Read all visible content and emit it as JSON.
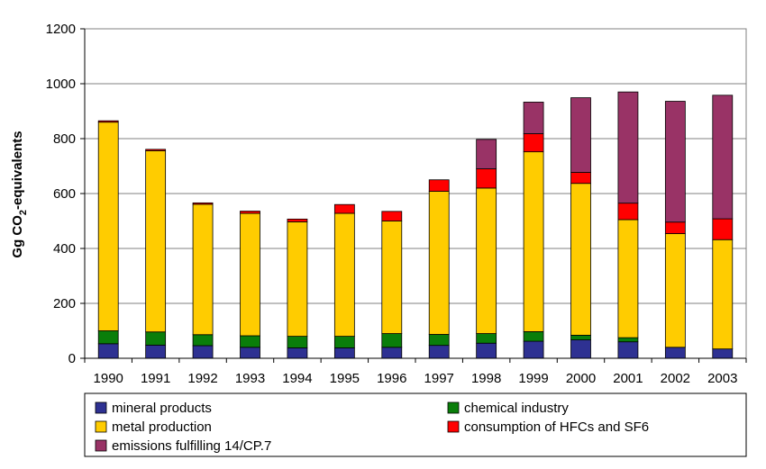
{
  "chart_data": {
    "type": "bar",
    "stacked": true,
    "title": "",
    "xlabel": "",
    "ylabel": "Gg CO",
    "ylabel_sub": "2",
    "ylabel_suffix": "-equivalents",
    "ylim": [
      0,
      1200
    ],
    "yticks": [
      "0",
      "200",
      "400",
      "600",
      "800",
      "1000",
      "1200"
    ],
    "grid": true,
    "legend_position": "bottom",
    "categories": [
      "1990",
      "1991",
      "1992",
      "1993",
      "1994",
      "1995",
      "1996",
      "1997",
      "1998",
      "1999",
      "2000",
      "2001",
      "2002",
      "2003"
    ],
    "series": [
      {
        "name": "mineral products",
        "color": "#2E3192",
        "values": [
          53,
          48,
          46,
          40,
          38,
          38,
          40,
          47,
          55,
          62,
          67,
          60,
          40,
          34
        ]
      },
      {
        "name": "chemical industry",
        "color": "#0A7E0A",
        "values": [
          47,
          48,
          40,
          42,
          42,
          42,
          50,
          40,
          35,
          35,
          17,
          15,
          0,
          0
        ]
      },
      {
        "name": "metal production",
        "color": "#FFCC00",
        "values": [
          760,
          660,
          475,
          446,
          417,
          448,
          410,
          521,
          530,
          655,
          553,
          430,
          414,
          398
        ]
      },
      {
        "name": "consumption of HFCs and SF6",
        "color": "#FF0000",
        "values": [
          5,
          5,
          5,
          8,
          10,
          32,
          35,
          42,
          70,
          66,
          40,
          60,
          42,
          76
        ]
      },
      {
        "name": "emissions fulfilling 14/CP.7",
        "color": "#993366",
        "values": [
          0,
          0,
          0,
          0,
          0,
          0,
          0,
          0,
          107,
          115,
          272,
          405,
          440,
          450
        ]
      }
    ]
  }
}
